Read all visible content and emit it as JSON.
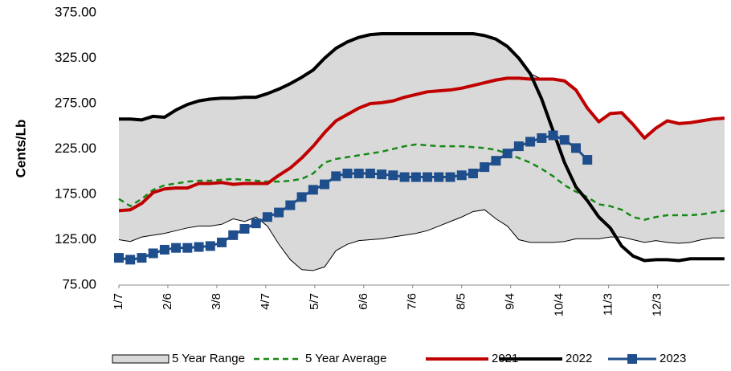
{
  "chart_data": {
    "type": "line",
    "y_label": "Cents/Lb",
    "x": [
      0,
      7,
      14,
      21,
      28,
      35,
      42,
      49,
      56,
      63,
      70,
      77,
      84,
      91,
      98,
      105,
      112,
      119,
      126,
      133,
      140,
      147,
      154,
      161,
      168,
      175,
      182,
      189,
      196,
      203,
      210,
      217,
      224,
      231,
      238,
      245,
      252,
      259,
      266,
      273,
      280,
      287,
      294,
      301,
      308,
      315,
      322,
      329,
      336,
      343,
      350,
      357,
      364,
      371
    ],
    "xlim": [
      0,
      374
    ],
    "xticks": [
      {
        "value": 0,
        "label": "1/7"
      },
      {
        "value": 30,
        "label": "2/6"
      },
      {
        "value": 60,
        "label": "3/8"
      },
      {
        "value": 90,
        "label": "4/7"
      },
      {
        "value": 120,
        "label": "5/7"
      },
      {
        "value": 150,
        "label": "6/6"
      },
      {
        "value": 180,
        "label": "7/6"
      },
      {
        "value": 210,
        "label": "8/5"
      },
      {
        "value": 240,
        "label": "9/4"
      },
      {
        "value": 270,
        "label": "10/4"
      },
      {
        "value": 300,
        "label": "11/3"
      },
      {
        "value": 330,
        "label": "12/3"
      }
    ],
    "ylim": [
      75,
      375
    ],
    "yticks": [
      {
        "value": 75,
        "label": "75.00"
      },
      {
        "value": 125,
        "label": "125.00"
      },
      {
        "value": 175,
        "label": "175.00"
      },
      {
        "value": 225,
        "label": "225.00"
      },
      {
        "value": 275,
        "label": "275.00"
      },
      {
        "value": 325,
        "label": "325.00"
      },
      {
        "value": 375,
        "label": "375.00"
      }
    ],
    "grid": false,
    "legend": "bottom",
    "series": [
      {
        "name": "5 Year Range",
        "kind": "range",
        "color": "#d9d9d9",
        "high": [
          258,
          258,
          257,
          261,
          260,
          268,
          274,
          278,
          280,
          281,
          281,
          282,
          282,
          286,
          291,
          297,
          304,
          312,
          325,
          336,
          343,
          348,
          351,
          352,
          352,
          352,
          352,
          352,
          352,
          352,
          352,
          352,
          350,
          346,
          338,
          325,
          308,
          302,
          302,
          300,
          290,
          270,
          255,
          264,
          265,
          252,
          237,
          248,
          256,
          253,
          254,
          256,
          258,
          259
        ],
        "low": [
          125,
          123,
          128,
          130,
          132,
          135,
          138,
          140,
          140,
          142,
          148,
          145,
          150,
          140,
          120,
          103,
          92,
          91,
          95,
          113,
          120,
          124,
          125,
          126,
          128,
          130,
          132,
          135,
          140,
          145,
          150,
          156,
          158,
          148,
          140,
          125,
          122,
          122,
          122,
          123,
          126,
          126,
          126,
          128,
          128,
          125,
          122,
          124,
          122,
          121,
          122,
          125,
          127,
          127
        ]
      },
      {
        "name": "5 Year Average",
        "kind": "dashed",
        "color": "#168a16",
        "values": [
          170,
          162,
          170,
          180,
          185,
          187,
          189,
          190,
          190,
          191,
          192,
          191,
          190,
          189,
          189,
          190,
          192,
          198,
          210,
          214,
          216,
          218,
          220,
          222,
          225,
          228,
          230,
          229,
          228,
          228,
          228,
          227,
          226,
          224,
          220,
          215,
          210,
          203,
          195,
          185,
          178,
          172,
          164,
          162,
          158,
          150,
          147,
          150,
          152,
          152,
          152,
          153,
          155,
          157
        ]
      },
      {
        "name": "2021",
        "kind": "line",
        "color": "#c00000",
        "values": [
          157,
          158,
          165,
          177,
          181,
          182,
          182,
          187,
          187,
          188,
          186,
          187,
          187,
          187,
          196,
          204,
          215,
          228,
          243,
          256,
          263,
          270,
          275,
          276,
          278,
          282,
          285,
          288,
          289,
          290,
          292,
          295,
          298,
          301,
          303,
          303,
          302,
          302,
          302,
          300,
          290,
          270,
          255,
          264,
          265,
          252,
          237,
          248,
          256,
          253,
          254,
          256,
          258,
          259
        ]
      },
      {
        "name": "2022",
        "kind": "line",
        "color": "#000000",
        "values": [
          258,
          258,
          257,
          261,
          260,
          268,
          274,
          278,
          280,
          281,
          281,
          282,
          282,
          286,
          291,
          297,
          304,
          312,
          325,
          336,
          343,
          348,
          351,
          352,
          352,
          352,
          352,
          352,
          352,
          352,
          352,
          352,
          350,
          346,
          338,
          325,
          308,
          280,
          245,
          210,
          183,
          168,
          150,
          138,
          118,
          107,
          102,
          103,
          103,
          102,
          104,
          104,
          104,
          104
        ]
      },
      {
        "name": "2023",
        "kind": "marker",
        "color": "#1f4e8c",
        "values": [
          105,
          103,
          105,
          110,
          114,
          116,
          116,
          117,
          118,
          122,
          130,
          137,
          143,
          150,
          155,
          163,
          172,
          180,
          186,
          195,
          198,
          198,
          198,
          197,
          196,
          194,
          194,
          194,
          194,
          194,
          196,
          198,
          205,
          212,
          220,
          228,
          233,
          237,
          240,
          235,
          226,
          213,
          null,
          null,
          null,
          null,
          null,
          null,
          null,
          null,
          null,
          null,
          null,
          null
        ]
      }
    ]
  }
}
